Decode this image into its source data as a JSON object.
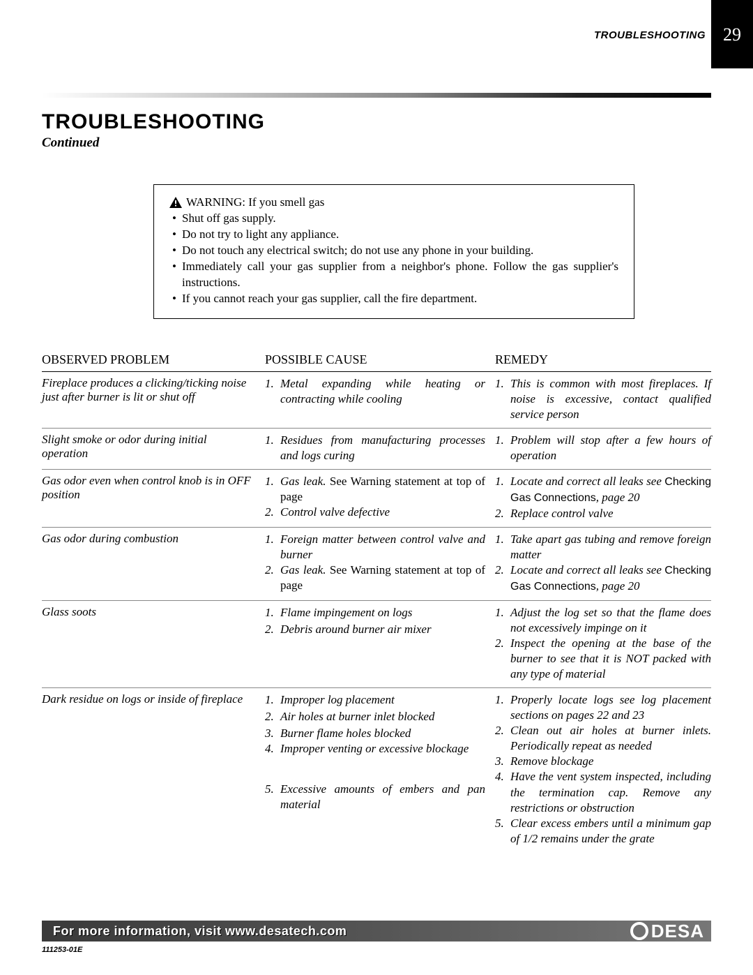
{
  "header": {
    "section_label": "TROUBLESHOOTING",
    "page_number": "29"
  },
  "title": "TROUBLESHOOTING",
  "subtitle": "Continued",
  "warning": {
    "lead": "WARNING: If you smell gas",
    "items": [
      "Shut off gas supply.",
      "Do not try to light any appliance.",
      "Do not touch any electrical switch; do not use any phone in your building.",
      "Immediately call your gas supplier from a neighbor's phone. Follow the gas supplier's instructions.",
      "If you cannot reach your gas supplier, call the fire department."
    ]
  },
  "table": {
    "headers": {
      "observed": "OBSERVED PROBLEM",
      "cause": "POSSIBLE CAUSE",
      "remedy": "REMEDY"
    },
    "rows": [
      {
        "problem": "Fireplace produces a clicking/ticking noise just after burner is lit or shut off",
        "causes": [
          {
            "text": "Metal expanding while heating or contracting while cooling",
            "style": "ital"
          }
        ],
        "remedies": [
          {
            "text": "This is common with most fireplaces. If noise is excessive, contact qualified service person",
            "style": "ital"
          }
        ]
      },
      {
        "problem": "Slight smoke or odor during initial operation",
        "causes": [
          {
            "text": "Residues from manufacturing processes and logs curing",
            "style": "ital"
          }
        ],
        "remedies": [
          {
            "text": "Problem will stop after a few hours of operation",
            "style": "ital"
          }
        ]
      },
      {
        "problem": "Gas odor even when control knob is in OFF position",
        "causes": [
          {
            "pre": "Gas leak. ",
            "roman": "See Warning statement at top of page"
          },
          {
            "text": "Control valve defective",
            "style": "ital"
          }
        ],
        "remedies": [
          {
            "pre": "Locate and correct all leaks see ",
            "upright": "Checking Gas Connections",
            "post": ", page 20"
          },
          {
            "text": "Replace control valve",
            "style": "ital"
          }
        ]
      },
      {
        "problem": "Gas odor during combustion",
        "causes": [
          {
            "text": "Foreign matter between control valve and burner",
            "style": "ital"
          },
          {
            "pre": "Gas leak. ",
            "roman": "See Warning statement at top of page"
          }
        ],
        "remedies": [
          {
            "text": "Take apart gas tubing and remove foreign matter",
            "style": "ital"
          },
          {
            "pre": "Locate and correct all leaks see ",
            "upright": "Checking Gas Connections",
            "post": ", page 20"
          }
        ]
      },
      {
        "problem": "Glass soots",
        "causes": [
          {
            "text": "Flame impingement on logs",
            "style": "ital"
          },
          {
            "text": "Debris around burner air mixer",
            "style": "ital",
            "gap": true
          }
        ],
        "remedies": [
          {
            "text": "Adjust the log set so that the flame does not excessively impinge on it",
            "style": "ital"
          },
          {
            "text": "Inspect the opening at the base of the burner to see that it is NOT packed with any type of material",
            "style": "ital"
          }
        ]
      },
      {
        "problem": "Dark residue on logs or inside of fireplace",
        "causes": [
          {
            "text": "Improper log placement",
            "style": "ital"
          },
          {
            "text": "Air holes at burner inlet blocked",
            "style": "ital",
            "gap": true
          },
          {
            "text": "Burner flame holes blocked",
            "style": "ital",
            "gap": true
          },
          {
            "text": "Improper venting or excessive blockage",
            "style": "ital"
          },
          {
            "text": "Excessive amounts of embers and pan material",
            "style": "ital",
            "gap3": true
          }
        ],
        "remedies": [
          {
            "text": "Properly locate logs see log placement sections on pages 22 and 23",
            "style": "ital"
          },
          {
            "text": "Clean out air holes at burner inlets. Periodically repeat as needed",
            "style": "ital"
          },
          {
            "text": "Remove blockage",
            "style": "ital"
          },
          {
            "text": "Have the vent system inspected, including the termination cap. Remove any restrictions or obstruction",
            "style": "ital"
          },
          {
            "text": "Clear excess embers until a minimum gap of 1/2 remains under the grate",
            "style": "ital"
          }
        ]
      }
    ]
  },
  "footer": {
    "text": "For more information, visit www.desatech.com",
    "logo": "DESA",
    "doc_id": "111253-01E"
  },
  "colors": {
    "black": "#000000",
    "white": "#ffffff"
  }
}
